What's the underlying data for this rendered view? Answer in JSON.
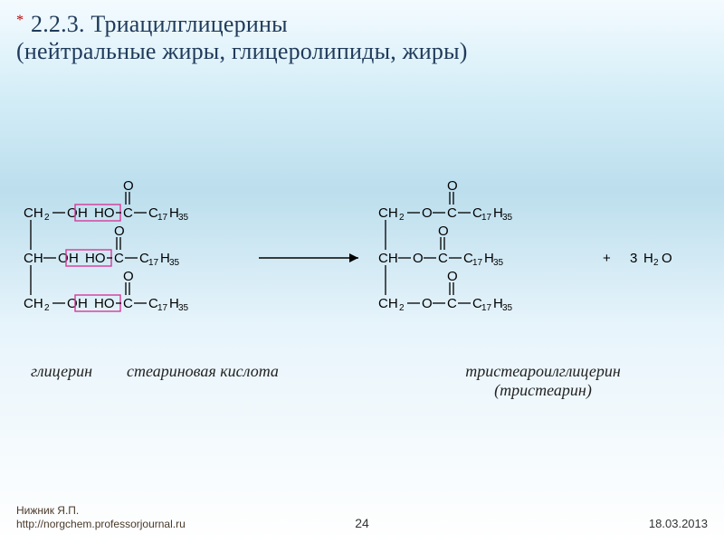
{
  "title": {
    "star": "*",
    "text_line1": "2.2.3. Триацилглицерины",
    "text_line2": "(нейтральные жиры, глицеролипиды, жиры)",
    "color": "#1f3a5a",
    "star_color": "#c00000",
    "fontsize": 26
  },
  "reaction": {
    "type": "chemical-reaction-diagram",
    "text_color": "#000000",
    "bond_color": "#000000",
    "highlight_stroke": "#d63a9a",
    "arrow_color": "#000000",
    "font_family": "Arial",
    "font_size": 15,
    "sub_size": 10,
    "reactant_glycerol": {
      "rows": [
        {
          "left": "CH",
          "left_sub": "2",
          "oh": "OH"
        },
        {
          "left": "CH",
          "left_sub": "",
          "oh": "OH"
        },
        {
          "left": "CH",
          "left_sub": "2",
          "oh": "OH"
        }
      ]
    },
    "reactant_acid": {
      "rows": [
        {
          "ho": "HO",
          "c": "C",
          "o_double": "O",
          "tail": "C",
          "tail_sub1": "17",
          "tail2": "H",
          "tail_sub2": "35"
        },
        {
          "ho": "HO",
          "c": "C",
          "o_double": "O",
          "tail": "C",
          "tail_sub1": "17",
          "tail2": "H",
          "tail_sub2": "35"
        },
        {
          "ho": "HO",
          "c": "C",
          "o_double": "O",
          "tail": "C",
          "tail_sub1": "17",
          "tail2": "H",
          "tail_sub2": "35"
        }
      ]
    },
    "product": {
      "rows": [
        {
          "left": "CH",
          "left_sub": "2",
          "o": "O",
          "c": "C",
          "o_double": "O",
          "tail": "C",
          "tail_sub1": "17",
          "tail2": "H",
          "tail_sub2": "35"
        },
        {
          "left": "CH",
          "left_sub": "",
          "o": "O",
          "c": "C",
          "o_double": "O",
          "tail": "C",
          "tail_sub1": "17",
          "tail2": "H",
          "tail_sub2": "35"
        },
        {
          "left": "CH",
          "left_sub": "2",
          "o": "O",
          "c": "C",
          "o_double": "O",
          "tail": "C",
          "tail_sub1": "17",
          "tail2": "H",
          "tail_sub2": "35"
        }
      ]
    },
    "byproduct": {
      "plus": "+",
      "coef": "3",
      "h": "H",
      "sub": "2",
      "o": "O"
    }
  },
  "labels": {
    "glycerol": "глицерин",
    "stearic": "стеариновая кислота",
    "tristearin_line1": "тристеароилглицерин",
    "tristearin_line2": "(тристеарин)",
    "fontsize": 18,
    "color": "#222222"
  },
  "footer": {
    "author": "Нижник Я.П.",
    "url": "http://norgchem.professorjournal.ru",
    "page": "24",
    "date": "18.03.2013",
    "color": "#4a3a2a",
    "fontsize": 12
  }
}
